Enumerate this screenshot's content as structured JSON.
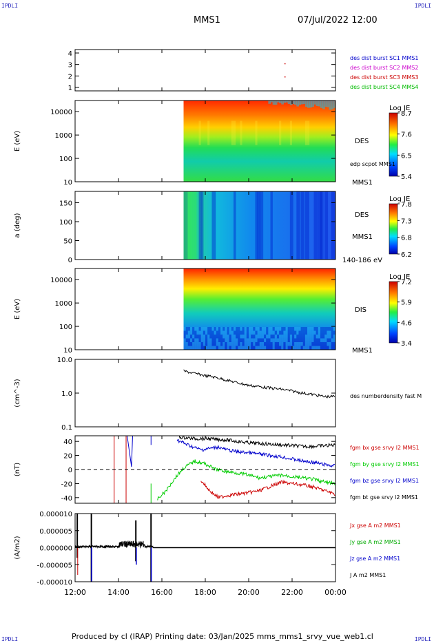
{
  "corner_label": "IPDLI",
  "header": {
    "spacecraft": "MMS1",
    "datetime": "07/Jul/2022 12:00"
  },
  "footer": "Produced by cl (IRAP)   Printing date: 03/Jan/2025   mms_mms1_srvy_vue_web1.cl",
  "colors": {
    "mms1": "#0000cc",
    "mms2": "#cc00cc",
    "mms3": "#cc0000",
    "mms4": "#00bb00",
    "bx": "#cc0000",
    "by": "#00cc00",
    "bz": "#0000cc",
    "bt": "#000000"
  },
  "chart_data": [
    {
      "type": "scatter",
      "name": "burst",
      "yticks": [
        "1",
        "2",
        "3",
        "4"
      ],
      "ylim": [
        0.7,
        4.3
      ],
      "legend": [
        {
          "label": "des dist burst SC1 MMS1",
          "color": "#0000cc"
        },
        {
          "label": "des dist burst SC2 MMS2",
          "color": "#cc00cc"
        },
        {
          "label": "des dist burst SC3 MMS3",
          "color": "#cc0000"
        },
        {
          "label": "des dist burst SC4 MMS4",
          "color": "#00bb00"
        }
      ],
      "points": [
        {
          "t": 21.65,
          "y": 3.05,
          "color": "#cc0000"
        },
        {
          "t": 21.65,
          "y": 1.9,
          "color": "#cc0000"
        }
      ]
    },
    {
      "type": "heatmap",
      "name": "des-energy",
      "ylabel": "E (eV)",
      "yticks": [
        "10",
        "100",
        "1000",
        "10000"
      ],
      "ylim": [
        10,
        30000
      ],
      "log": true,
      "right_labels": [
        "DES",
        "edp scpot MMS1",
        "MMS1"
      ],
      "colorbar": {
        "title": "Log JE",
        "ticks": [
          "8.7",
          "7.6",
          "6.5",
          "5.4"
        ],
        "range": [
          5.4,
          8.7
        ]
      },
      "data_start_hour": 17.0
    },
    {
      "type": "heatmap",
      "name": "des-pitch",
      "ylabel": "a (deg)",
      "yticks": [
        "0",
        "50",
        "100",
        "150"
      ],
      "ylim": [
        0,
        180
      ],
      "right_labels": [
        "DES",
        "MMS1",
        "140-186 eV"
      ],
      "colorbar": {
        "title": "Log JE",
        "ticks": [
          "7.8",
          "7.3",
          "6.8",
          "6.2"
        ],
        "range": [
          6.2,
          7.8
        ]
      },
      "data_start_hour": 17.0
    },
    {
      "type": "heatmap",
      "name": "dis-energy",
      "ylabel": "E (eV)",
      "yticks": [
        "10",
        "100",
        "1000",
        "10000"
      ],
      "ylim": [
        10,
        30000
      ],
      "log": true,
      "right_labels": [
        "DIS",
        "MMS1"
      ],
      "colorbar": {
        "title": "Log JE",
        "ticks": [
          "7.2",
          "5.9",
          "4.6",
          "3.4"
        ],
        "range": [
          3.4,
          7.2
        ]
      },
      "data_start_hour": 17.0
    },
    {
      "type": "line",
      "name": "density",
      "ylabel": "(cm^-3)",
      "yticks": [
        "0.1",
        "1.0",
        "10.0"
      ],
      "ylim": [
        0.1,
        10
      ],
      "log": true,
      "series": [
        {
          "name": "des numberdensity fast M",
          "color": "#000000",
          "t": [
            17.0,
            17.5,
            18.0,
            18.5,
            19.0,
            19.5,
            20.0,
            20.5,
            21.0,
            21.5,
            22.0,
            22.5,
            23.0,
            23.5,
            24.0
          ],
          "v": [
            4.5,
            3.8,
            3.3,
            2.9,
            2.4,
            2.0,
            1.7,
            1.55,
            1.4,
            1.3,
            1.15,
            1.0,
            0.9,
            0.78,
            0.8
          ]
        }
      ]
    },
    {
      "type": "line",
      "name": "magnetic-field",
      "ylabel": "(nT)",
      "yticks": [
        "-40",
        "-20",
        "0",
        "20",
        "40"
      ],
      "ylim": [
        -48,
        48
      ],
      "series": [
        {
          "name": "fgm bx gse srvy l2 MMS1",
          "color": "#cc0000",
          "t": [
            17.8,
            18.2,
            18.6,
            19.0,
            19.5,
            20.0,
            20.5,
            21.0,
            21.5,
            22.0,
            22.5,
            23.0,
            23.5,
            24.0
          ],
          "v": [
            -15,
            -30,
            -40,
            -37,
            -35,
            -33,
            -30,
            -24,
            -18,
            -20,
            -22,
            -25,
            -30,
            -35
          ]
        },
        {
          "name": "fgm by gse srvy l2 MMS1",
          "color": "#00cc00",
          "t": [
            15.8,
            16.2,
            16.6,
            17.0,
            17.5,
            18.0,
            18.5,
            19.0,
            19.5,
            20.0,
            20.5,
            21.0,
            21.5,
            22.0,
            22.5,
            23.0,
            23.5,
            24.0
          ],
          "v": [
            -42,
            -30,
            -12,
            2,
            12,
            8,
            0,
            -3,
            -5,
            -8,
            -12,
            -10,
            -8,
            -10,
            -12,
            -14,
            -18,
            -20
          ]
        },
        {
          "name": "fgm bz gse srvy l2 MMS1",
          "color": "#0000cc",
          "t": [
            16.7,
            17.2,
            17.8,
            18.2,
            18.6,
            19.0,
            19.5,
            20.0,
            20.5,
            21.0,
            21.5,
            22.0,
            22.5,
            23.0,
            23.5,
            24.0
          ],
          "v": [
            42,
            35,
            28,
            30,
            32,
            28,
            25,
            24,
            22,
            20,
            18,
            15,
            12,
            10,
            7,
            5
          ]
        },
        {
          "name": "fgm bt gse srvy l2 MMS1",
          "color": "#000000",
          "t": [
            16.8,
            17.5,
            18.0,
            18.5,
            19.0,
            19.5,
            20.0,
            20.5,
            21.0,
            21.5,
            22.0,
            22.5,
            23.0,
            23.5,
            24.0
          ],
          "v": [
            46,
            44,
            44,
            43,
            42,
            40,
            38,
            37,
            36,
            35,
            34,
            33,
            33,
            34,
            35
          ]
        }
      ]
    },
    {
      "type": "line",
      "name": "current-density",
      "ylabel": "(A/m2)",
      "yticks": [
        "-0.000010",
        "-0.000005",
        "0.000000",
        "0.000005",
        "0.000010"
      ],
      "ylim": [
        -1e-05,
        1e-05
      ],
      "series": [
        {
          "name": "Jx gse A m2 MMS1",
          "color": "#cc0000"
        },
        {
          "name": "Jy gse A m2 MMS1",
          "color": "#00aa00"
        },
        {
          "name": "Jz gse A m2 MMS1",
          "color": "#0000cc"
        },
        {
          "name": "J A m2 MMS1",
          "color": "#000000"
        }
      ]
    }
  ],
  "time_axis": {
    "ticks": [
      "12:00",
      "14:00",
      "16:00",
      "18:00",
      "20:00",
      "22:00",
      "00:00"
    ],
    "range_hours": [
      12,
      24
    ]
  }
}
